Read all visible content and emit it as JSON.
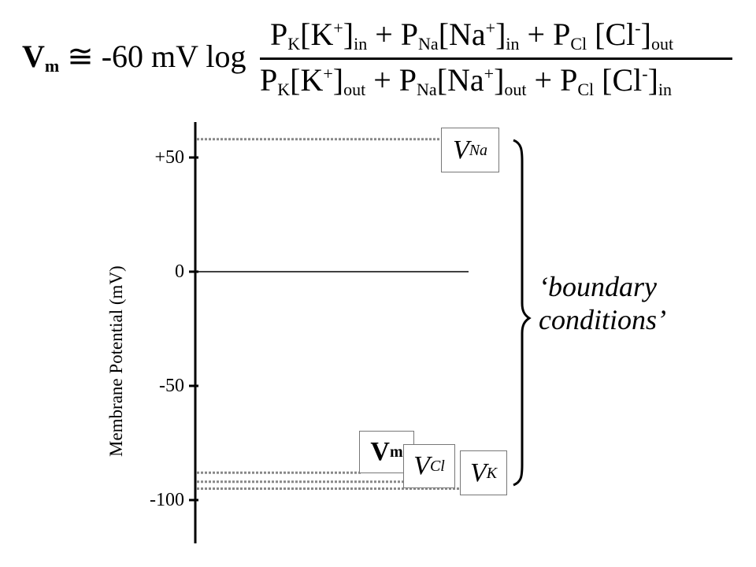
{
  "equation": {
    "lhs_symbol": "V",
    "lhs_sub": "m",
    "approx": "≅",
    "prefix": "-60 mV log",
    "numerator": [
      {
        "t": "P"
      },
      {
        "sub": "K"
      },
      {
        "t": "[K"
      },
      {
        "sup": "+"
      },
      {
        "t": "]"
      },
      {
        "sub": "in"
      },
      {
        "t": " + P"
      },
      {
        "sub": "Na"
      },
      {
        "t": "[Na"
      },
      {
        "sup": "+"
      },
      {
        "t": "]"
      },
      {
        "sub": "in"
      },
      {
        "t": " + P"
      },
      {
        "sub": "Cl"
      },
      {
        "t": " [Cl"
      },
      {
        "sup": "-"
      },
      {
        "t": "]"
      },
      {
        "sub": "out"
      }
    ],
    "denominator": [
      {
        "t": "P"
      },
      {
        "sub": "K"
      },
      {
        "t": "[K"
      },
      {
        "sup": "+"
      },
      {
        "t": "]"
      },
      {
        "sub": "out"
      },
      {
        "t": " + P"
      },
      {
        "sub": "Na"
      },
      {
        "t": "[Na"
      },
      {
        "sup": "+"
      },
      {
        "t": "]"
      },
      {
        "sub": "out"
      },
      {
        "t": " + P"
      },
      {
        "sub": "Cl"
      },
      {
        "t": " [Cl"
      },
      {
        "sup": "-"
      },
      {
        "t": "]"
      },
      {
        "sub": "in"
      }
    ]
  },
  "axis": {
    "ylabel": "Membrane Potential (mV)",
    "ticks": [
      "+50",
      "0",
      "-50",
      "-100"
    ],
    "tick_values": [
      50,
      0,
      -50,
      -100
    ]
  },
  "potentials": {
    "na": {
      "symbol": "V",
      "sub": "Na",
      "value": 58
    },
    "vm": {
      "symbol": "V",
      "sub": "m",
      "value": -88
    },
    "cl": {
      "symbol": "V",
      "sub": "Cl",
      "value": -92
    },
    "k": {
      "symbol": "V",
      "sub": "K",
      "value": -95
    }
  },
  "boundary": {
    "line1": "‘boundary",
    "line2": "conditions’"
  },
  "colors": {
    "axis": "#000000",
    "dotted": "#888888",
    "box_border": "#777777"
  }
}
